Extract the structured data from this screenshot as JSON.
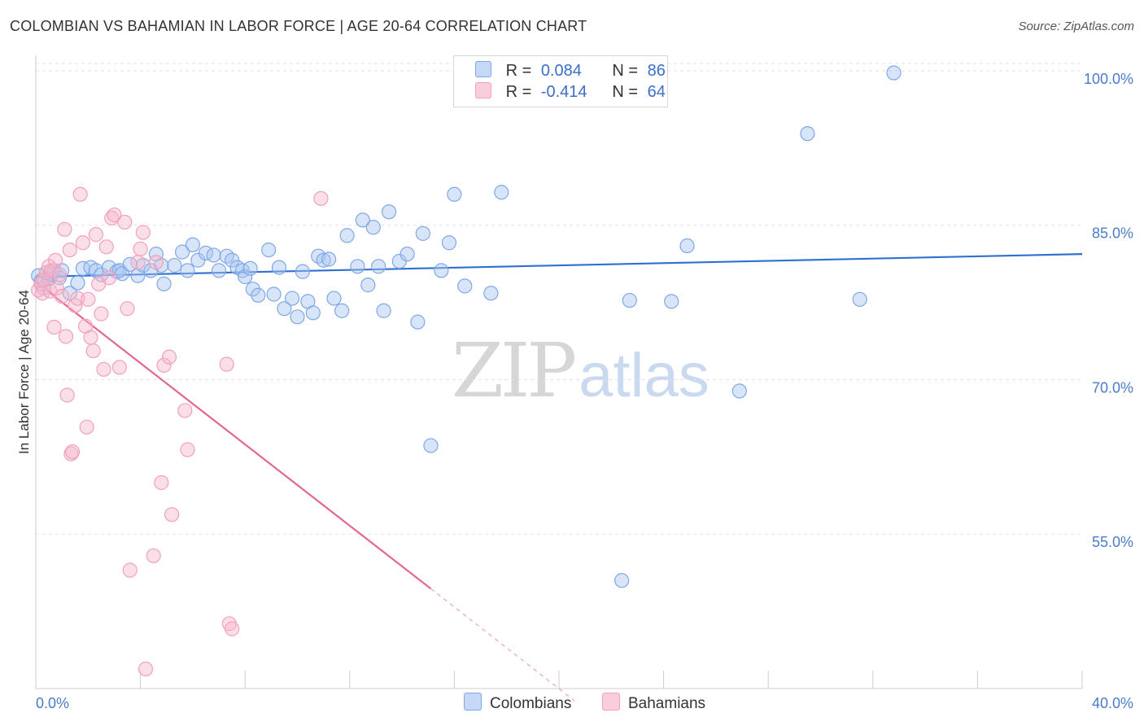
{
  "title": "COLOMBIAN VS BAHAMIAN IN LABOR FORCE | AGE 20-64 CORRELATION CHART",
  "source": "Source: ZipAtlas.com",
  "watermark": {
    "zip": "ZIP",
    "atlas": "atlas"
  },
  "legend": {
    "rows": [
      {
        "r_label": "R =",
        "r_value": "0.084",
        "n_label": "N =",
        "n_value": "86",
        "color": "#7fa8e8"
      },
      {
        "r_label": "R =",
        "r_value": "-0.414",
        "n_label": "N =",
        "n_value": "64",
        "color": "#f3a0bb"
      }
    ]
  },
  "bottom_legend": [
    {
      "label": "Colombians",
      "color": "#a9c5f0"
    },
    {
      "label": "Bahamians",
      "color": "#f7b8cc"
    }
  ],
  "chart_data": {
    "type": "scatter",
    "title": "COLOMBIAN VS BAHAMIAN IN LABOR FORCE | AGE 20-64 CORRELATION CHART",
    "ylabel": "In Labor Force | Age 20-64",
    "xlabel": "",
    "xlim": [
      0,
      40
    ],
    "ylim": [
      40,
      101.5
    ],
    "x_tick_labels": [
      "0.0%",
      "40.0%"
    ],
    "y_ticks": [
      55,
      70,
      85,
      100
    ],
    "y_tick_labels": [
      "55.0%",
      "70.0%",
      "85.0%",
      "100.0%"
    ],
    "grid": true,
    "series": [
      {
        "name": "Colombians",
        "color": "#7fa8e8",
        "trend": {
          "x": [
            0,
            40
          ],
          "y": [
            80.0,
            82.2
          ],
          "color": "#2f6fd0"
        },
        "points": [
          [
            0.1,
            80.1
          ],
          [
            0.2,
            79.6
          ],
          [
            0.3,
            78.9
          ],
          [
            0.4,
            80.4
          ],
          [
            0.5,
            79.8
          ],
          [
            0.6,
            80.2
          ],
          [
            0.7,
            80.6
          ],
          [
            0.9,
            79.9
          ],
          [
            1.0,
            80.6
          ],
          [
            1.3,
            78.4
          ],
          [
            1.6,
            79.4
          ],
          [
            1.8,
            80.8
          ],
          [
            2.1,
            80.9
          ],
          [
            2.3,
            80.6
          ],
          [
            2.5,
            80.2
          ],
          [
            2.8,
            80.9
          ],
          [
            3.1,
            80.5
          ],
          [
            3.2,
            80.6
          ],
          [
            3.3,
            80.3
          ],
          [
            3.6,
            81.2
          ],
          [
            3.9,
            80.1
          ],
          [
            4.1,
            81.1
          ],
          [
            4.4,
            80.6
          ],
          [
            4.6,
            82.2
          ],
          [
            4.8,
            81.1
          ],
          [
            4.9,
            79.3
          ],
          [
            5.3,
            81.1
          ],
          [
            5.6,
            82.4
          ],
          [
            5.8,
            80.6
          ],
          [
            6.0,
            83.1
          ],
          [
            6.2,
            81.6
          ],
          [
            6.5,
            82.3
          ],
          [
            6.8,
            82.1
          ],
          [
            7.0,
            80.6
          ],
          [
            7.3,
            82.0
          ],
          [
            7.5,
            81.6
          ],
          [
            7.7,
            80.9
          ],
          [
            7.9,
            80.6
          ],
          [
            8.0,
            80.0
          ],
          [
            8.2,
            80.8
          ],
          [
            8.3,
            78.8
          ],
          [
            8.5,
            78.2
          ],
          [
            8.9,
            82.6
          ],
          [
            9.1,
            78.3
          ],
          [
            9.3,
            80.9
          ],
          [
            9.5,
            76.9
          ],
          [
            9.8,
            77.9
          ],
          [
            10.0,
            76.1
          ],
          [
            10.2,
            80.5
          ],
          [
            10.4,
            77.6
          ],
          [
            10.6,
            76.5
          ],
          [
            10.8,
            82.0
          ],
          [
            11.0,
            81.6
          ],
          [
            11.2,
            81.7
          ],
          [
            11.4,
            77.9
          ],
          [
            11.7,
            76.7
          ],
          [
            11.9,
            84.0
          ],
          [
            12.3,
            81.0
          ],
          [
            12.5,
            85.5
          ],
          [
            12.7,
            79.2
          ],
          [
            12.9,
            84.8
          ],
          [
            13.1,
            81.0
          ],
          [
            13.3,
            76.7
          ],
          [
            13.5,
            86.3
          ],
          [
            13.9,
            81.5
          ],
          [
            14.2,
            82.2
          ],
          [
            14.6,
            75.6
          ],
          [
            14.8,
            84.2
          ],
          [
            15.1,
            63.6
          ],
          [
            15.5,
            80.6
          ],
          [
            15.8,
            83.3
          ],
          [
            16.0,
            88.0
          ],
          [
            16.4,
            79.1
          ],
          [
            17.4,
            78.4
          ],
          [
            17.8,
            88.2
          ],
          [
            22.4,
            50.5
          ],
          [
            22.7,
            77.7
          ],
          [
            24.3,
            77.6
          ],
          [
            24.9,
            83.0
          ],
          [
            26.9,
            68.9
          ],
          [
            29.5,
            93.9
          ],
          [
            31.5,
            77.8
          ],
          [
            32.8,
            99.8
          ]
        ]
      },
      {
        "name": "Bahamians",
        "color": "#f3a0bb",
        "trend": {
          "x": [
            0,
            15.1
          ],
          "y": [
            79.5,
            49.7
          ],
          "dash_to": {
            "x": 20.6,
            "y": 38.8
          },
          "color": "#e36594"
        },
        "points": [
          [
            0.1,
            78.7
          ],
          [
            0.2,
            79.3
          ],
          [
            0.25,
            78.4
          ],
          [
            0.3,
            79.7
          ],
          [
            0.4,
            80.4
          ],
          [
            0.5,
            81.0
          ],
          [
            0.55,
            78.6
          ],
          [
            0.6,
            80.6
          ],
          [
            0.7,
            75.1
          ],
          [
            0.75,
            81.6
          ],
          [
            0.8,
            78.9
          ],
          [
            0.9,
            80.2
          ],
          [
            1.0,
            78.1
          ],
          [
            1.1,
            84.6
          ],
          [
            1.15,
            74.2
          ],
          [
            1.2,
            68.5
          ],
          [
            1.3,
            82.6
          ],
          [
            1.35,
            62.8
          ],
          [
            1.4,
            63.0
          ],
          [
            1.5,
            77.2
          ],
          [
            1.6,
            77.9
          ],
          [
            1.7,
            88.0
          ],
          [
            1.8,
            83.3
          ],
          [
            1.9,
            75.2
          ],
          [
            1.95,
            65.4
          ],
          [
            2.0,
            77.8
          ],
          [
            2.1,
            74.1
          ],
          [
            2.2,
            72.8
          ],
          [
            2.3,
            84.1
          ],
          [
            2.4,
            79.3
          ],
          [
            2.5,
            76.4
          ],
          [
            2.6,
            71.0
          ],
          [
            2.7,
            82.9
          ],
          [
            2.8,
            79.9
          ],
          [
            2.9,
            85.7
          ],
          [
            3.0,
            86.0
          ],
          [
            3.2,
            71.2
          ],
          [
            3.4,
            85.3
          ],
          [
            3.5,
            76.9
          ],
          [
            3.6,
            51.5
          ],
          [
            3.9,
            81.4
          ],
          [
            4.0,
            82.7
          ],
          [
            4.1,
            84.3
          ],
          [
            4.2,
            41.9
          ],
          [
            4.5,
            52.9
          ],
          [
            4.6,
            81.4
          ],
          [
            4.8,
            60.0
          ],
          [
            4.9,
            71.4
          ],
          [
            5.1,
            72.2
          ],
          [
            5.2,
            56.9
          ],
          [
            5.7,
            67.0
          ],
          [
            5.8,
            63.2
          ],
          [
            7.3,
            71.5
          ],
          [
            7.4,
            46.3
          ],
          [
            7.5,
            45.8
          ],
          [
            10.9,
            87.6
          ]
        ]
      }
    ]
  }
}
